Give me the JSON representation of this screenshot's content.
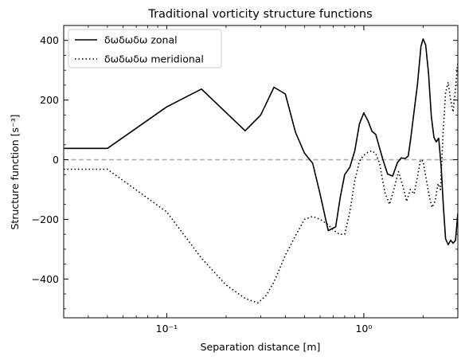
{
  "chart_data": {
    "type": "line",
    "title": "Traditional vorticity structure functions",
    "xlabel": "Separation distance [m]",
    "ylabel": "Structure function [s⁻³]",
    "xscale": "log",
    "xlim": [
      0.03,
      3.0
    ],
    "ylim": [
      -530,
      450
    ],
    "yticks": [
      -400,
      -200,
      0,
      200,
      400
    ],
    "ytick_labels": [
      "−400",
      "−200",
      "0",
      "200",
      "400"
    ],
    "xticks": [
      0.1,
      1
    ],
    "xtick_labels": [
      "10⁻¹",
      "10⁰"
    ],
    "grid": false,
    "legend_position": "top-left",
    "reference_line": {
      "y": 0,
      "style": "dashed",
      "color": "#aaaaaa"
    },
    "series": [
      {
        "name": "δωδωδω zonal",
        "style": "solid",
        "color": "#000000",
        "x": [
          0.03,
          0.05,
          0.1,
          0.15,
          0.25,
          0.3,
          0.35,
          0.4,
          0.45,
          0.5,
          0.55,
          0.6,
          0.66,
          0.72,
          0.76,
          0.8,
          0.85,
          0.9,
          0.95,
          1.0,
          1.05,
          1.1,
          1.15,
          1.25,
          1.32,
          1.4,
          1.48,
          1.55,
          1.62,
          1.68,
          1.73,
          1.79,
          1.87,
          1.95,
          2.0,
          2.06,
          2.13,
          2.2,
          2.27,
          2.33,
          2.4,
          2.47,
          2.53,
          2.6,
          2.68,
          2.76,
          2.84,
          2.92,
          3.0
        ],
        "y": [
          38,
          38,
          177,
          237,
          97,
          150,
          243,
          220,
          92,
          22,
          -12,
          -115,
          -238,
          -225,
          -125,
          -50,
          -25,
          30,
          120,
          157,
          130,
          95,
          85,
          0,
          -48,
          -55,
          -10,
          6,
          4,
          12,
          70,
          150,
          250,
          380,
          405,
          385,
          290,
          145,
          75,
          60,
          72,
          -25,
          -150,
          -265,
          -285,
          -270,
          -280,
          -270,
          -180
        ]
      },
      {
        "name": "δωδωδω meridional",
        "style": "dotted",
        "color": "#000000",
        "x": [
          0.03,
          0.05,
          0.1,
          0.15,
          0.2,
          0.25,
          0.29,
          0.32,
          0.35,
          0.4,
          0.45,
          0.5,
          0.55,
          0.6,
          0.65,
          0.7,
          0.75,
          0.8,
          0.85,
          0.9,
          0.95,
          1.0,
          1.05,
          1.1,
          1.15,
          1.2,
          1.28,
          1.35,
          1.42,
          1.5,
          1.58,
          1.65,
          1.72,
          1.8,
          1.88,
          1.94,
          2.0,
          2.08,
          2.15,
          2.22,
          2.3,
          2.38,
          2.45,
          2.52,
          2.6,
          2.68,
          2.76,
          2.84,
          2.92,
          3.0
        ],
        "y": [
          -32,
          -32,
          -175,
          -330,
          -420,
          -465,
          -480,
          -455,
          -410,
          -320,
          -255,
          -200,
          -190,
          -200,
          -215,
          -235,
          -250,
          -250,
          -175,
          -70,
          -5,
          15,
          25,
          30,
          20,
          -10,
          -110,
          -150,
          -100,
          -40,
          -90,
          -140,
          -100,
          -115,
          -50,
          0,
          -5,
          -70,
          -125,
          -160,
          -140,
          -80,
          -100,
          80,
          225,
          260,
          200,
          160,
          240,
          330
        ]
      }
    ]
  }
}
